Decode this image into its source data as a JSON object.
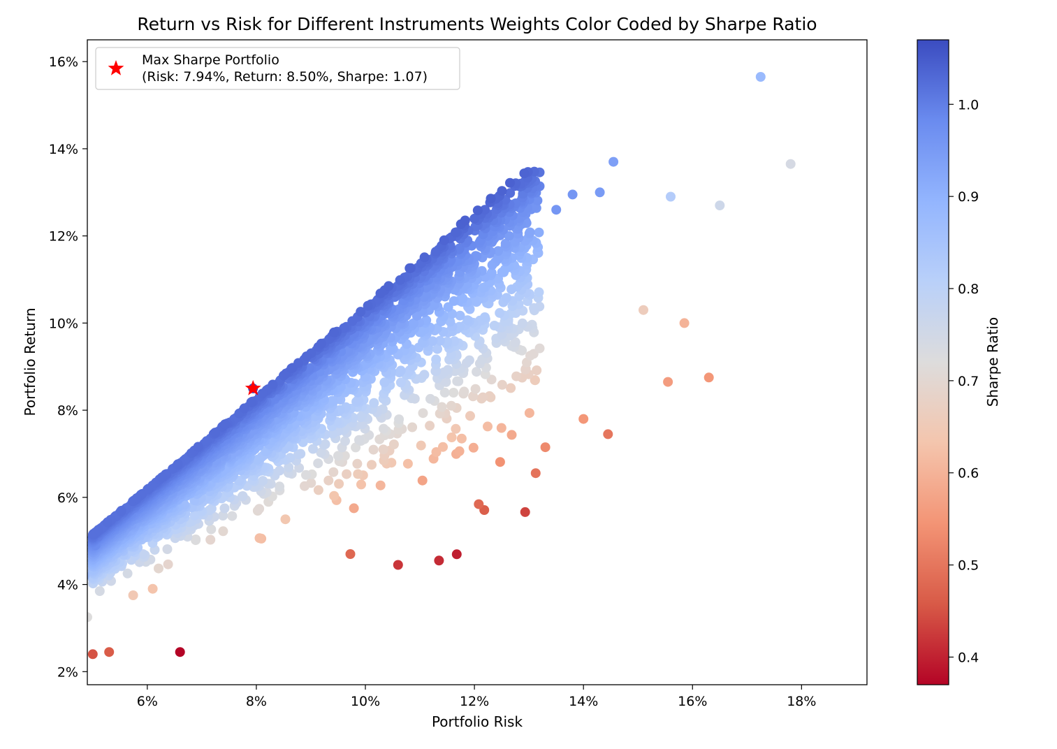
{
  "chart_data": {
    "type": "scatter",
    "title": "Return vs Risk for Different Instruments Weights Color Coded by Sharpe Ratio",
    "xlabel": "Portfolio Risk",
    "ylabel": "Portfolio Return",
    "xlim": [
      4.9,
      19.2
    ],
    "ylim": [
      1.7,
      16.5
    ],
    "x_ticks": [
      "6%",
      "8%",
      "10%",
      "12%",
      "14%",
      "16%",
      "18%"
    ],
    "y_ticks": [
      "2%",
      "4%",
      "6%",
      "8%",
      "10%",
      "12%",
      "14%",
      "16%"
    ],
    "grid": false,
    "colorbar": {
      "label": "Sharpe Ratio",
      "range": [
        0.37,
        1.07
      ],
      "ticks": [
        "0.4",
        "0.5",
        "0.6",
        "0.7",
        "0.8",
        "0.9",
        "1.0"
      ],
      "colormap": "coolwarm"
    },
    "legend": {
      "placement": "top-left",
      "entries": [
        {
          "label_line1": "Max Sharpe Portfolio",
          "label_line2": "(Risk: 7.94%, Return: 8.50%, Sharpe: 1.07)",
          "marker": "star",
          "color": "#ff0000"
        }
      ]
    },
    "highlight": {
      "risk": 7.94,
      "return": 8.5,
      "sharpe": 1.07
    },
    "points": [
      [
        17.25,
        15.65,
        0.88
      ],
      [
        17.8,
        13.65,
        0.74
      ],
      [
        16.5,
        12.7,
        0.76
      ],
      [
        15.6,
        12.9,
        0.82
      ],
      [
        14.55,
        13.7,
        0.94
      ],
      [
        14.3,
        13.0,
        0.95
      ],
      [
        13.8,
        12.95,
        0.96
      ],
      [
        13.5,
        12.6,
        0.96
      ],
      [
        15.85,
        10.0,
        0.6
      ],
      [
        16.3,
        8.75,
        0.55
      ],
      [
        15.55,
        8.65,
        0.56
      ],
      [
        15.1,
        10.3,
        0.66
      ],
      [
        14.45,
        7.45,
        0.5
      ],
      [
        14.0,
        7.8,
        0.55
      ],
      [
        13.3,
        7.15,
        0.53
      ],
      [
        11.35,
        4.55,
        0.41
      ],
      [
        10.6,
        4.45,
        0.42
      ],
      [
        6.6,
        2.45,
        0.37
      ],
      [
        5.0,
        2.4,
        0.45
      ],
      [
        5.3,
        2.45,
        0.46
      ],
      [
        4.85,
        4.2,
        0.87
      ],
      [
        5.05,
        4.9,
        0.98
      ],
      [
        5.1,
        5.1,
        1.0
      ],
      [
        4.9,
        3.25,
        0.72
      ]
    ]
  }
}
